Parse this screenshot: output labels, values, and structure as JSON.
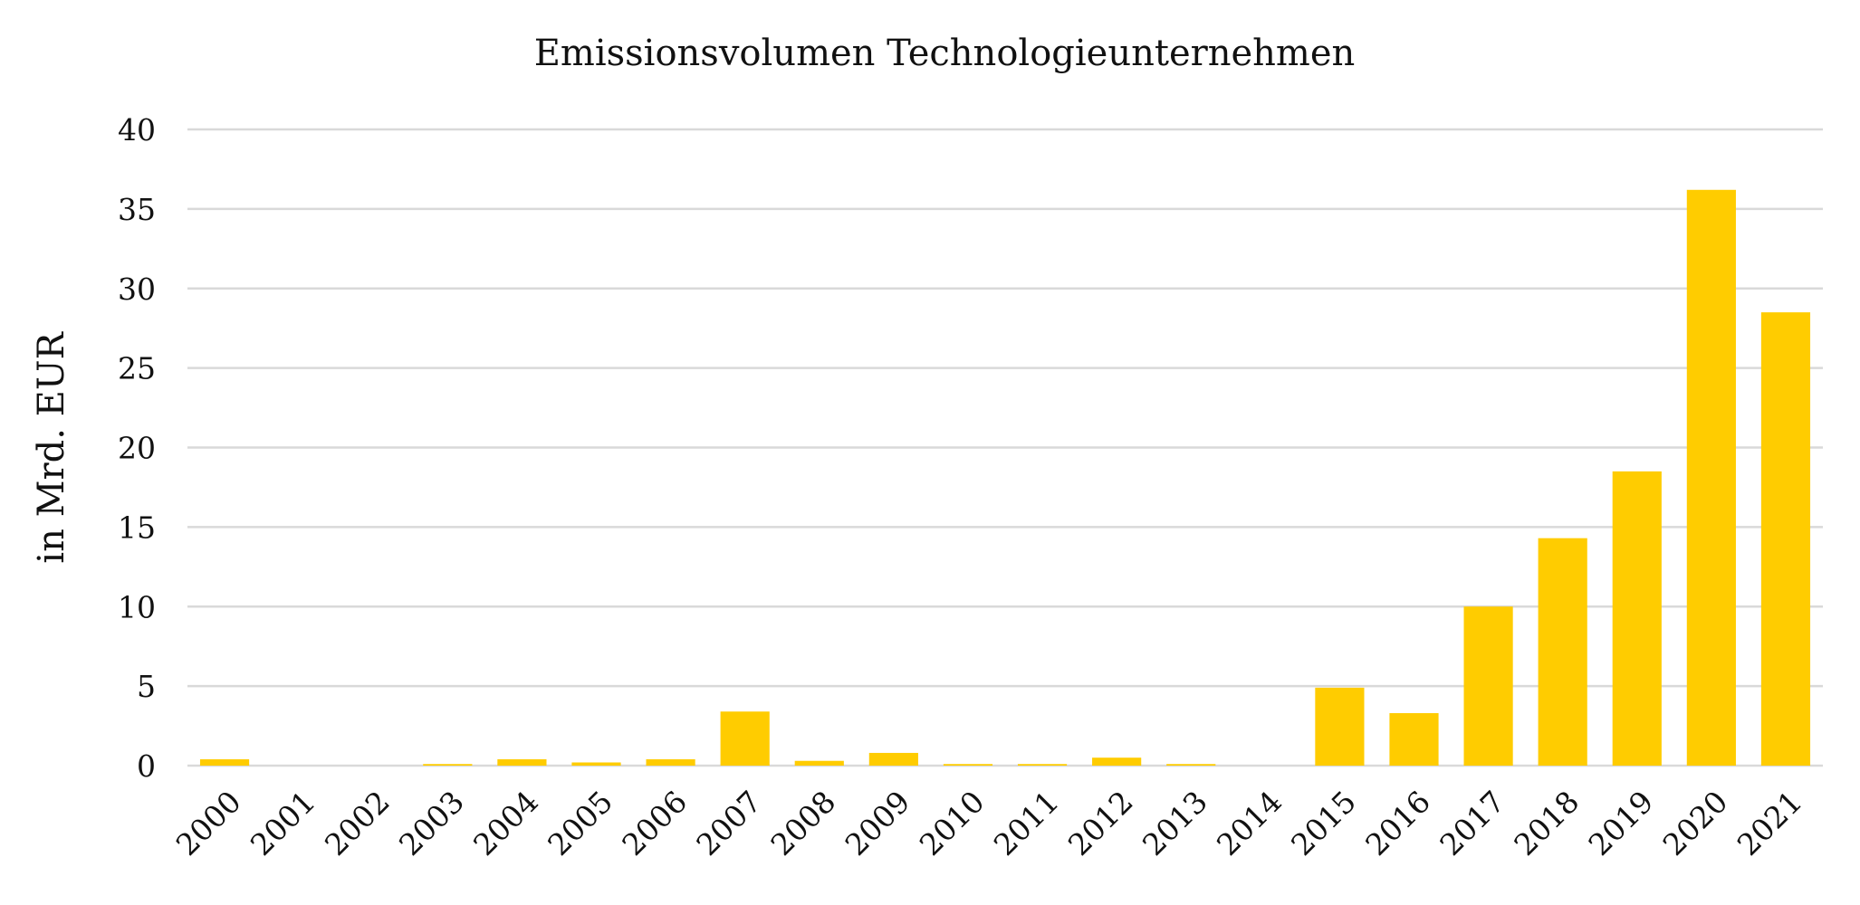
{
  "chart_data": {
    "type": "bar",
    "title": "Emissionsvolumen Technologieunternehmen",
    "xlabel": "",
    "ylabel": "in Mrd. EUR",
    "categories": [
      "2000",
      "2001",
      "2002",
      "2003",
      "2004",
      "2005",
      "2006",
      "2007",
      "2008",
      "2009",
      "2010",
      "2011",
      "2012",
      "2013",
      "2014",
      "2015",
      "2016",
      "2017",
      "2018",
      "2019",
      "2020",
      "2021"
    ],
    "values": [
      0.4,
      0,
      0,
      0.1,
      0.4,
      0.2,
      0.4,
      3.4,
      0.3,
      0.8,
      0.1,
      0.1,
      0.5,
      0.1,
      0,
      4.9,
      3.3,
      10.0,
      14.3,
      18.5,
      36.2,
      28.5
    ],
    "ylim": [
      0,
      40
    ],
    "yticks": [
      0,
      5,
      10,
      15,
      20,
      25,
      30,
      35,
      40
    ],
    "grid": true,
    "legend": "none",
    "bar_color": "#FFCC00"
  }
}
